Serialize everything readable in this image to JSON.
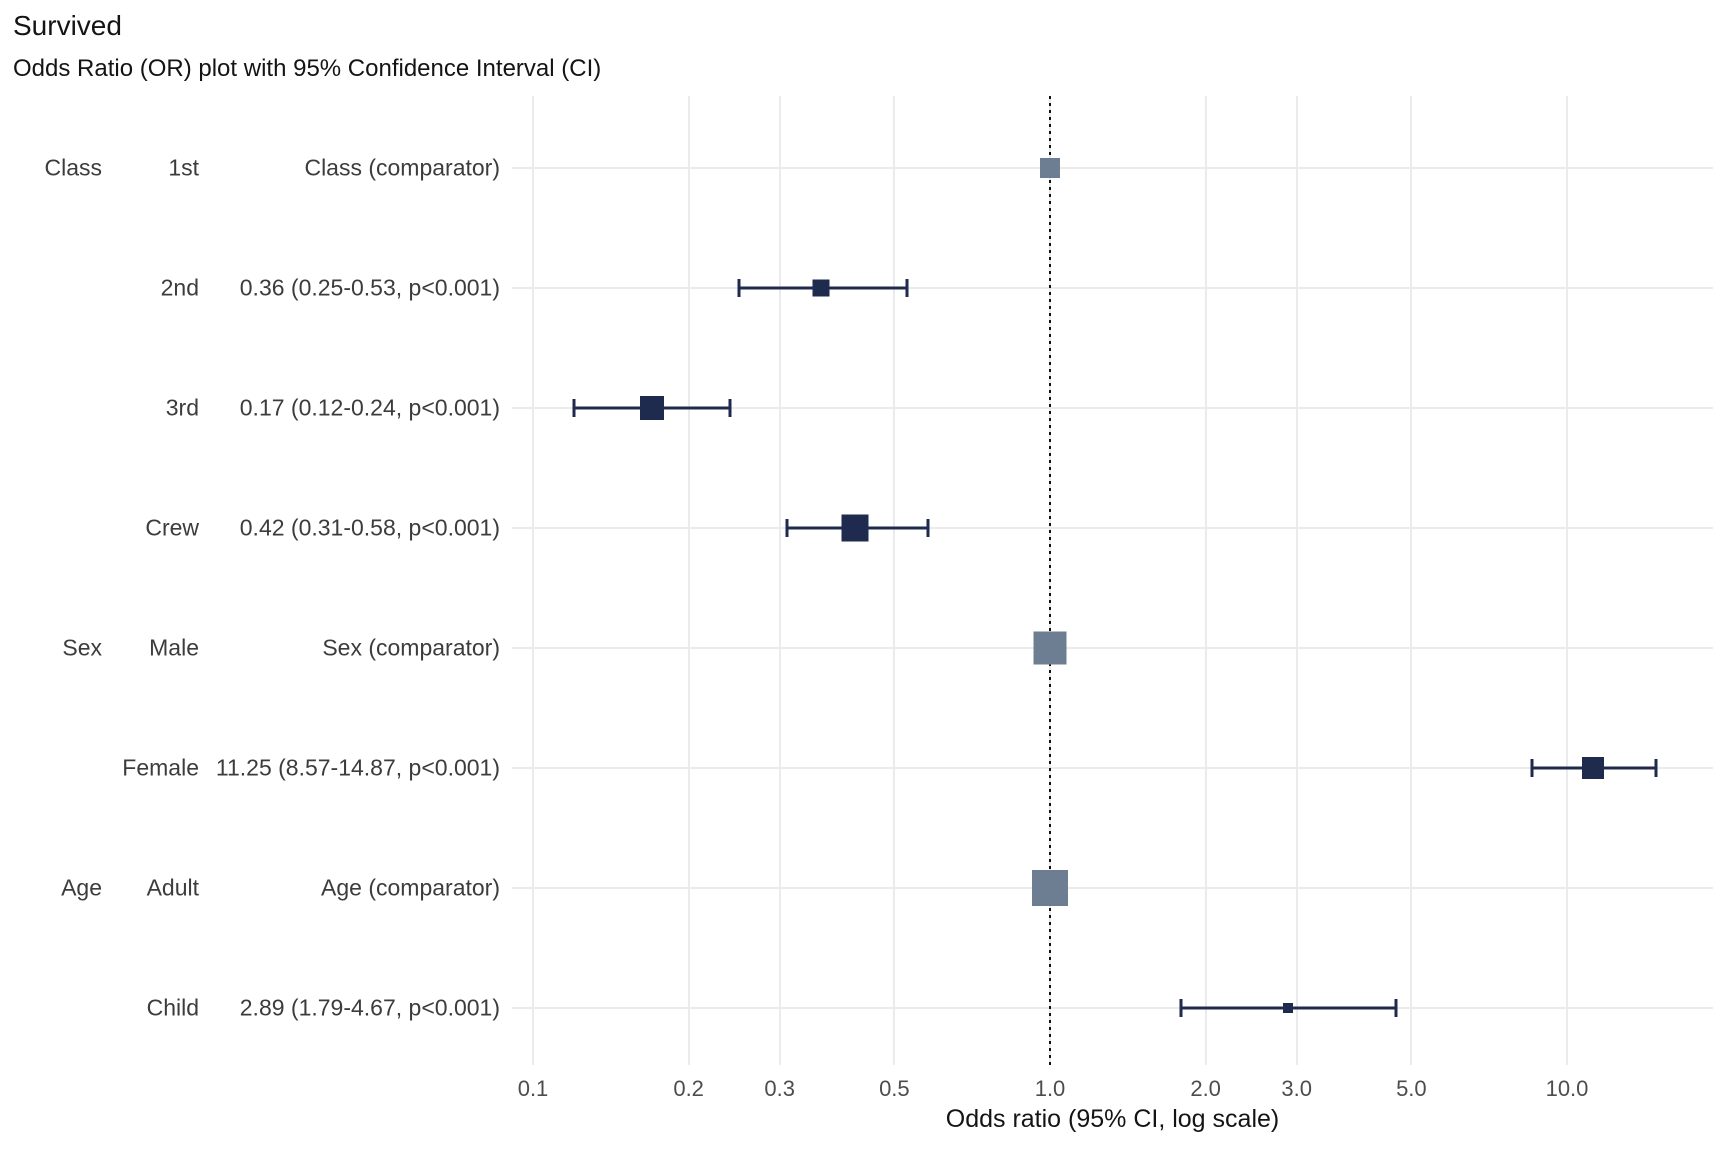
{
  "title": "Survived",
  "subtitle": "Odds Ratio (OR) plot with 95% Confidence Interval (CI)",
  "colors": {
    "estimate_marker": "#1e2a4e",
    "comparator_marker": "#6e7e92",
    "gridline": "#ebebeb",
    "reference_line": "#111111",
    "label_text": "#3c3c3c",
    "tick_text": "#4d4d4d",
    "title_text": "#141414"
  },
  "chart_data": {
    "type": "scatter",
    "subtype": "forest-plot-odds-ratio",
    "title": "Survived",
    "subtitle": "Odds Ratio (OR) plot with 95% Confidence Interval (CI)",
    "xlabel": "Odds ratio (95% CI, log scale)",
    "x_scale": "log10",
    "xlim": [
      0.091,
      19.2
    ],
    "reference_line_x": 1.0,
    "grid": true,
    "x_ticks": [
      0.1,
      0.2,
      0.3,
      0.5,
      1.0,
      2.0,
      3.0,
      5.0,
      10.0
    ],
    "x_tick_labels": [
      "0.1",
      "0.2",
      "0.3",
      "0.5",
      "1.0",
      "2.0",
      "3.0",
      "5.0",
      "10.0"
    ],
    "rows": [
      {
        "group": "Class",
        "level": "1st",
        "estimate_label": "Class (comparator)",
        "or": 1.0,
        "ci_low": null,
        "ci_high": null,
        "comparator": true,
        "marker_size": 20
      },
      {
        "group": "",
        "level": "2nd",
        "estimate_label": "0.36 (0.25-0.53, p<0.001)",
        "or": 0.36,
        "ci_low": 0.25,
        "ci_high": 0.53,
        "comparator": false,
        "marker_size": 17
      },
      {
        "group": "",
        "level": "3rd",
        "estimate_label": "0.17 (0.12-0.24, p<0.001)",
        "or": 0.17,
        "ci_low": 0.12,
        "ci_high": 0.24,
        "comparator": false,
        "marker_size": 24
      },
      {
        "group": "",
        "level": "Crew",
        "estimate_label": "0.42 (0.31-0.58, p<0.001)",
        "or": 0.42,
        "ci_low": 0.31,
        "ci_high": 0.58,
        "comparator": false,
        "marker_size": 27
      },
      {
        "group": "Sex",
        "level": "Male",
        "estimate_label": "Sex (comparator)",
        "or": 1.0,
        "ci_low": null,
        "ci_high": null,
        "comparator": true,
        "marker_size": 33
      },
      {
        "group": "",
        "level": "Female",
        "estimate_label": "11.25 (8.57-14.87, p<0.001)",
        "or": 11.25,
        "ci_low": 8.57,
        "ci_high": 14.87,
        "comparator": false,
        "marker_size": 22
      },
      {
        "group": "Age",
        "level": "Adult",
        "estimate_label": "Age (comparator)",
        "or": 1.0,
        "ci_low": null,
        "ci_high": null,
        "comparator": true,
        "marker_size": 36
      },
      {
        "group": "",
        "level": "Child",
        "estimate_label": "2.89 (1.79-4.67, p<0.001)",
        "or": 2.89,
        "ci_low": 1.79,
        "ci_high": 4.67,
        "comparator": false,
        "marker_size": 10
      }
    ]
  }
}
